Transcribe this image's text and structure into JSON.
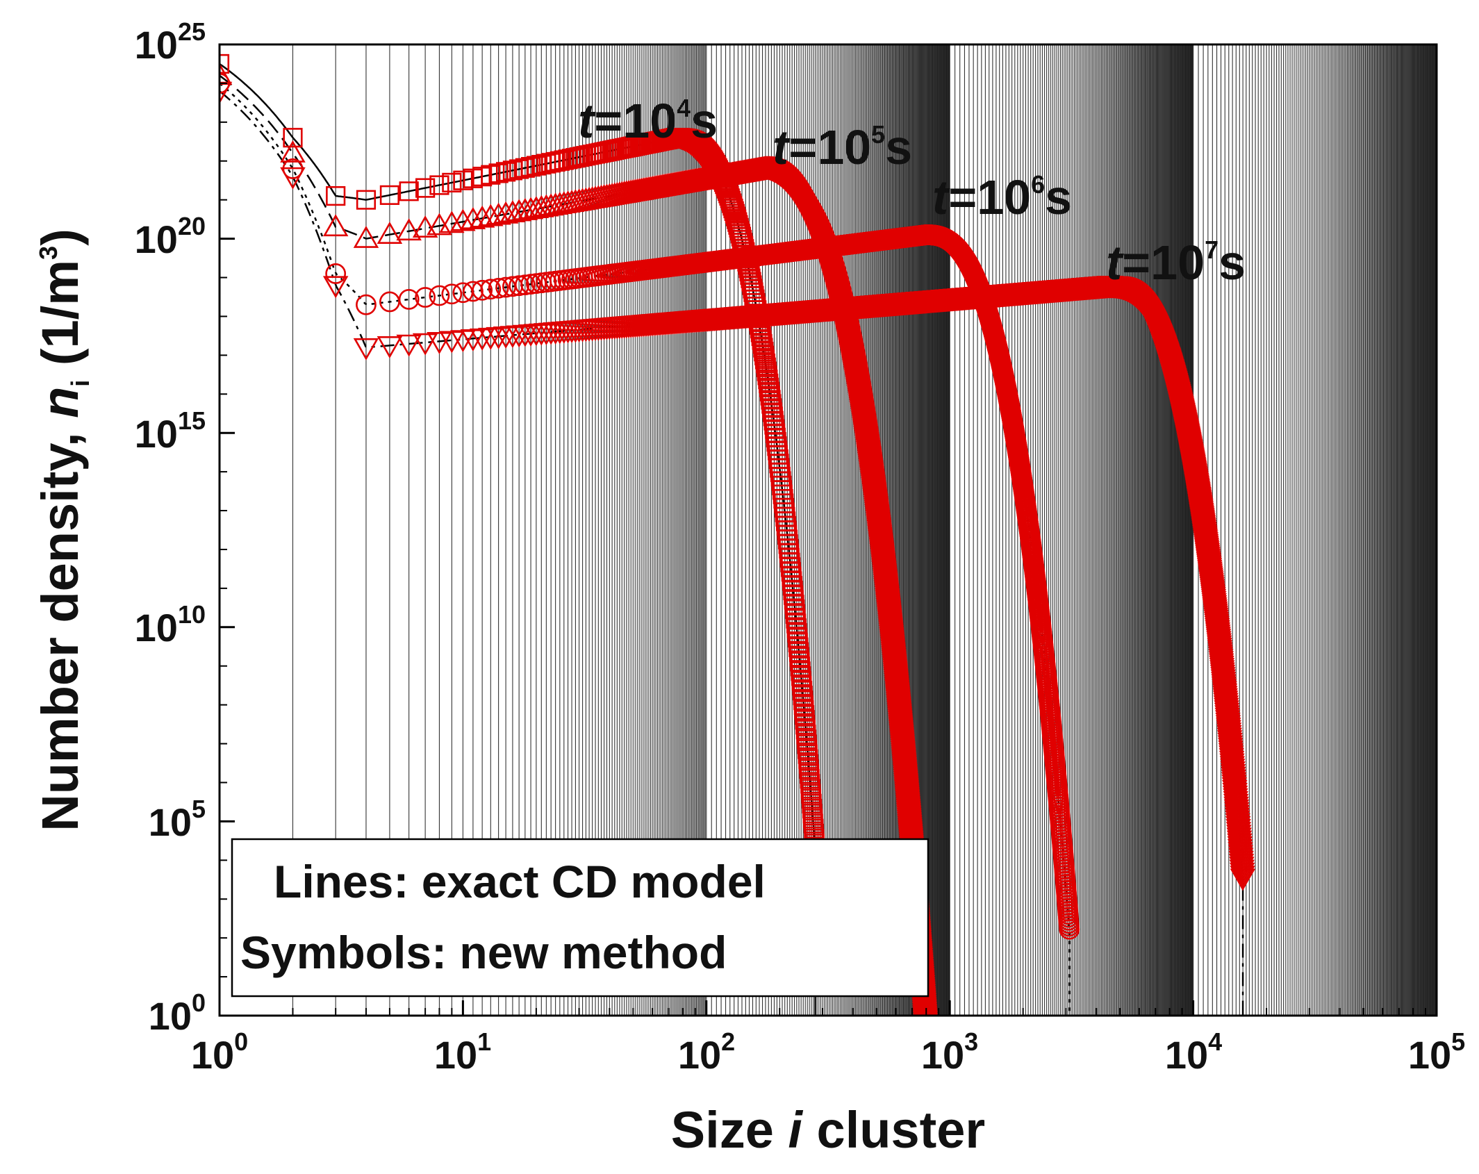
{
  "chart_data": {
    "type": "scatter",
    "xscale": "log",
    "yscale": "log",
    "xlim": [
      1,
      100000
    ],
    "ylim": [
      1,
      1e+25
    ],
    "grid": "vertical log gridlines",
    "xlabel": {
      "prefix": "Size ",
      "italic": "i",
      "suffix": " cluster"
    },
    "ylabel": {
      "prefix": "Number density, ",
      "italic": "n",
      "sub": "i",
      "unit_open": " (1/m",
      "unit_sup": "3",
      "unit_close": ")"
    },
    "xticks": [
      {
        "base": "10",
        "exp": "0"
      },
      {
        "base": "10",
        "exp": "1"
      },
      {
        "base": "10",
        "exp": "2"
      },
      {
        "base": "10",
        "exp": "3"
      },
      {
        "base": "10",
        "exp": "4"
      },
      {
        "base": "10",
        "exp": "5"
      }
    ],
    "yticks": [
      {
        "base": "10",
        "exp": "0"
      },
      {
        "base": "10",
        "exp": "5"
      },
      {
        "base": "10",
        "exp": "10"
      },
      {
        "base": "10",
        "exp": "15"
      },
      {
        "base": "10",
        "exp": "20"
      },
      {
        "base": "10",
        "exp": "25"
      }
    ],
    "legend": {
      "line1": "Lines: exact CD model",
      "line2": "Symbols: new method",
      "placement": "bottom-left"
    },
    "series_color": "#e00000",
    "line_color": "#000000",
    "series": [
      {
        "name": "t=10^4 s",
        "label": {
          "t": "t",
          "eq": "=10",
          "exp": "4",
          "unit": "s"
        },
        "marker": "square",
        "n1_log10": 24.5,
        "n2_log10": 22.6,
        "n3_log10": 21.1,
        "plateau_start_log10": 21.0,
        "plateau_end_log10": 22.6,
        "peak_size": 75,
        "cutoff_size": 280,
        "min_log10": 4.3
      },
      {
        "name": "t=10^5 s",
        "label": {
          "t": "t",
          "eq": "=10",
          "exp": "5",
          "unit": "s"
        },
        "marker": "triangle-up",
        "n1_log10": 24.2,
        "n2_log10": 22.2,
        "n3_log10": 20.3,
        "plateau_start_log10": 20.0,
        "plateau_end_log10": 21.8,
        "peak_size": 175,
        "cutoff_size": 800,
        "min_log10": 0.0
      },
      {
        "name": "t=10^6 s",
        "label": {
          "t": "t",
          "eq": "=10",
          "exp": "6",
          "unit": "s"
        },
        "marker": "circle",
        "n1_log10": 24.0,
        "n2_log10": 21.8,
        "n3_log10": 19.1,
        "plateau_start_log10": 18.3,
        "plateau_end_log10": 20.1,
        "peak_size": 800,
        "cutoff_size": 3100,
        "min_log10": 2.2
      },
      {
        "name": "t=10^7 s",
        "label": {
          "t": "t",
          "eq": "=10",
          "exp": "7",
          "unit": "s"
        },
        "marker": "triangle-down",
        "n1_log10": 23.8,
        "n2_log10": 21.6,
        "n3_log10": 18.8,
        "plateau_start_log10": 17.2,
        "plateau_end_log10": 18.8,
        "peak_size": 4500,
        "cutoff_size": 16000,
        "min_log10": 3.5
      }
    ]
  }
}
